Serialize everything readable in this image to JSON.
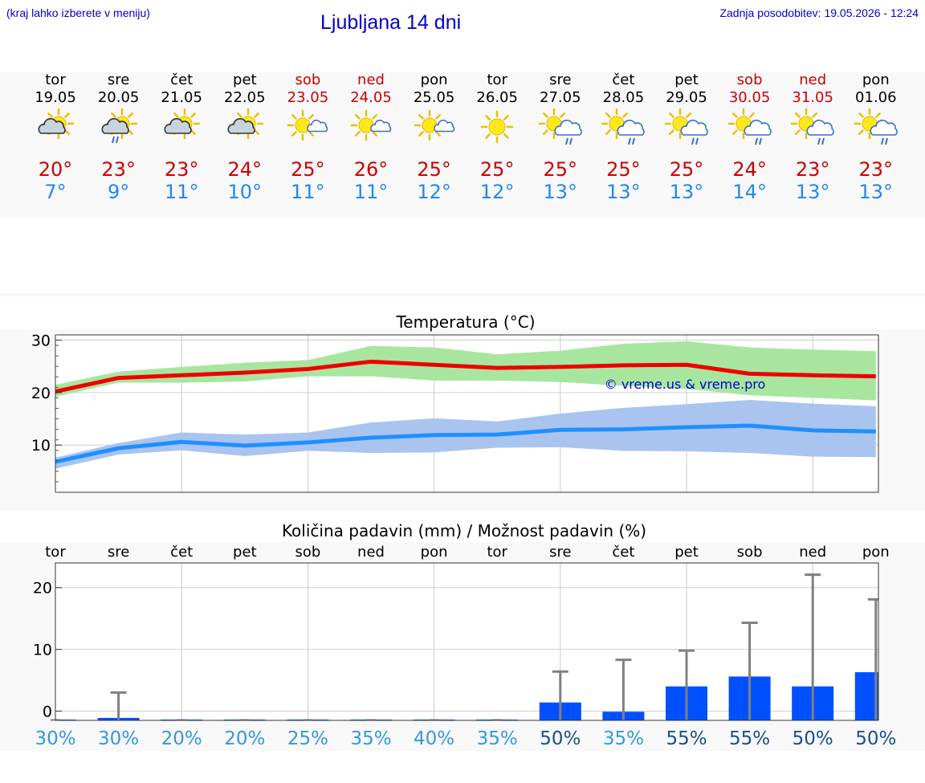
{
  "header": {
    "menu_hint": "(kraj lahko izberete v meniju)",
    "title": "Ljubljana 14 dni",
    "updated": "Zadnja posodobitev: 19.05.2026 - 12:24"
  },
  "colors": {
    "max_line": "#ee0000",
    "max_band": "#a8e6a0",
    "min_line": "#1e90ff",
    "min_band": "#aac4f0",
    "precip_bar": "#0050ff",
    "weekend_text": "#cc0000",
    "max_text": "#cc0000",
    "min_text": "#2288ee"
  },
  "days": [
    {
      "name": "tor",
      "date": "19.05",
      "icon": "sun-cloud-icon",
      "max": "20°",
      "min": "7°",
      "weekend": false
    },
    {
      "name": "sre",
      "date": "20.05",
      "icon": "sun-cloud-rain-icon",
      "max": "23°",
      "min": "9°",
      "weekend": false
    },
    {
      "name": "čet",
      "date": "21.05",
      "icon": "sun-cloud-icon",
      "max": "23°",
      "min": "11°",
      "weekend": false
    },
    {
      "name": "pet",
      "date": "22.05",
      "icon": "sun-cloud-icon",
      "max": "24°",
      "min": "10°",
      "weekend": false
    },
    {
      "name": "sob",
      "date": "23.05",
      "icon": "sun-small-cloud-icon",
      "max": "25°",
      "min": "11°",
      "weekend": true
    },
    {
      "name": "ned",
      "date": "24.05",
      "icon": "sun-small-cloud-icon",
      "max": "26°",
      "min": "11°",
      "weekend": true
    },
    {
      "name": "pon",
      "date": "25.05",
      "icon": "sun-small-cloud-icon",
      "max": "25°",
      "min": "12°",
      "weekend": false
    },
    {
      "name": "tor",
      "date": "26.05",
      "icon": "sun-icon",
      "max": "25°",
      "min": "12°",
      "weekend": false
    },
    {
      "name": "sre",
      "date": "27.05",
      "icon": "sun-cloud-shower-icon",
      "max": "25°",
      "min": "13°",
      "weekend": false
    },
    {
      "name": "čet",
      "date": "28.05",
      "icon": "sun-cloud-shower-icon",
      "max": "25°",
      "min": "13°",
      "weekend": false
    },
    {
      "name": "pet",
      "date": "29.05",
      "icon": "sun-cloud-shower-icon",
      "max": "25°",
      "min": "13°",
      "weekend": false
    },
    {
      "name": "sob",
      "date": "30.05",
      "icon": "sun-cloud-shower-icon",
      "max": "24°",
      "min": "14°",
      "weekend": true
    },
    {
      "name": "ned",
      "date": "31.05",
      "icon": "sun-cloud-shower-icon",
      "max": "23°",
      "min": "13°",
      "weekend": true
    },
    {
      "name": "pon",
      "date": "01.06",
      "icon": "sun-cloud-shower-icon",
      "max": "23°",
      "min": "13°",
      "weekend": false
    }
  ],
  "chart_data": [
    {
      "type": "line",
      "title": "Temperatura (°C)",
      "xlabel": "",
      "ylabel": "",
      "ylim": [
        1,
        31
      ],
      "yticks": [
        10,
        20,
        30
      ],
      "grid": true,
      "annotation": "© vreme.us & vreme.pro",
      "x": [
        "19.05",
        "20.05",
        "21.05",
        "22.05",
        "23.05",
        "24.05",
        "25.05",
        "26.05",
        "27.05",
        "28.05",
        "29.05",
        "30.05",
        "31.05",
        "01.06"
      ],
      "series": [
        {
          "values": [
            20.2,
            22.8,
            23.3,
            23.8,
            24.5,
            25.9,
            25.3,
            24.7,
            24.9,
            25.2,
            25.3,
            23.6,
            23.3,
            23.1
          ],
          "band_low": [
            19.2,
            21.9,
            21.9,
            22.1,
            23.1,
            23.1,
            22.3,
            22.3,
            22.0,
            21.3,
            20.7,
            19.5,
            19.0,
            18.5
          ],
          "band_high": [
            21.5,
            24.0,
            24.9,
            25.7,
            26.2,
            28.9,
            28.6,
            27.3,
            28.0,
            29.3,
            29.8,
            28.6,
            28.2,
            27.9
          ]
        },
        {
          "values": [
            6.8,
            9.4,
            10.6,
            9.9,
            10.5,
            11.4,
            11.9,
            12.0,
            12.9,
            13.0,
            13.4,
            13.7,
            12.8,
            12.6
          ],
          "band_low": [
            5.5,
            8.2,
            9.0,
            7.9,
            8.9,
            8.5,
            8.6,
            9.5,
            9.6,
            8.9,
            8.8,
            8.5,
            7.8,
            7.7
          ],
          "band_high": [
            7.6,
            10.4,
            12.4,
            12.0,
            12.4,
            14.3,
            15.1,
            14.5,
            16.0,
            17.1,
            17.8,
            18.6,
            17.9,
            17.4
          ]
        }
      ]
    },
    {
      "type": "bar",
      "title": "Količina padavin (mm) / Možnost padavin (%)",
      "xlabel": "",
      "ylabel": "",
      "ylim": [
        -1.5,
        24
      ],
      "yticks": [
        0,
        10,
        20
      ],
      "grid": true,
      "categories": [
        "tor",
        "sre",
        "čet",
        "pet",
        "sob",
        "ned",
        "pon",
        "tor",
        "sre",
        "čet",
        "pet",
        "sob",
        "ned",
        "pon"
      ],
      "values": [
        0,
        0.4,
        0,
        0,
        0,
        0,
        0,
        0,
        2.9,
        1.4,
        5.5,
        7.1,
        5.5,
        7.8
      ],
      "error_high": [
        0,
        4.5,
        0,
        0,
        0,
        0,
        0,
        0,
        7.9,
        9.8,
        11.3,
        15.8,
        23.6,
        19.6
      ],
      "probability": [
        "30%",
        "30%",
        "20%",
        "20%",
        "25%",
        "35%",
        "40%",
        "35%",
        "50%",
        "35%",
        "55%",
        "55%",
        "50%",
        "50%"
      ]
    }
  ]
}
